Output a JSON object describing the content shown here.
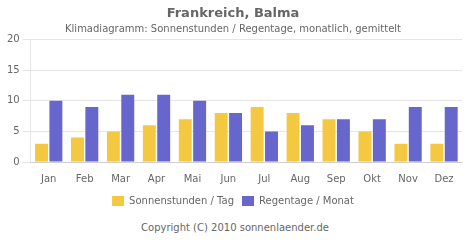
{
  "chart_data": {
    "type": "bar",
    "title": "Frankreich, Balma",
    "subtitle": "Klimadiagramm: Sonnenstunden / Regentage, monatlich, gemittelt",
    "categories": [
      "Jan",
      "Feb",
      "Mar",
      "Apr",
      "Mai",
      "Jun",
      "Jul",
      "Aug",
      "Sep",
      "Okt",
      "Nov",
      "Dez"
    ],
    "series": [
      {
        "name": "Sonnenstunden / Tag",
        "color": "#F5C842",
        "values": [
          3,
          4,
          5,
          6,
          7,
          8,
          9,
          8,
          7,
          5,
          3,
          3
        ]
      },
      {
        "name": "Regentage / Monat",
        "color": "#6666CC",
        "values": [
          10,
          9,
          11,
          11,
          10,
          8,
          5,
          6,
          7,
          7,
          9,
          9
        ]
      }
    ],
    "ylim": [
      0,
      20
    ],
    "yticks": [
      0,
      5,
      10,
      15,
      20
    ],
    "grid": true,
    "legend": "bottom",
    "annotations": [
      "Copyright (C) 2010 sonnenlaender.de"
    ]
  }
}
